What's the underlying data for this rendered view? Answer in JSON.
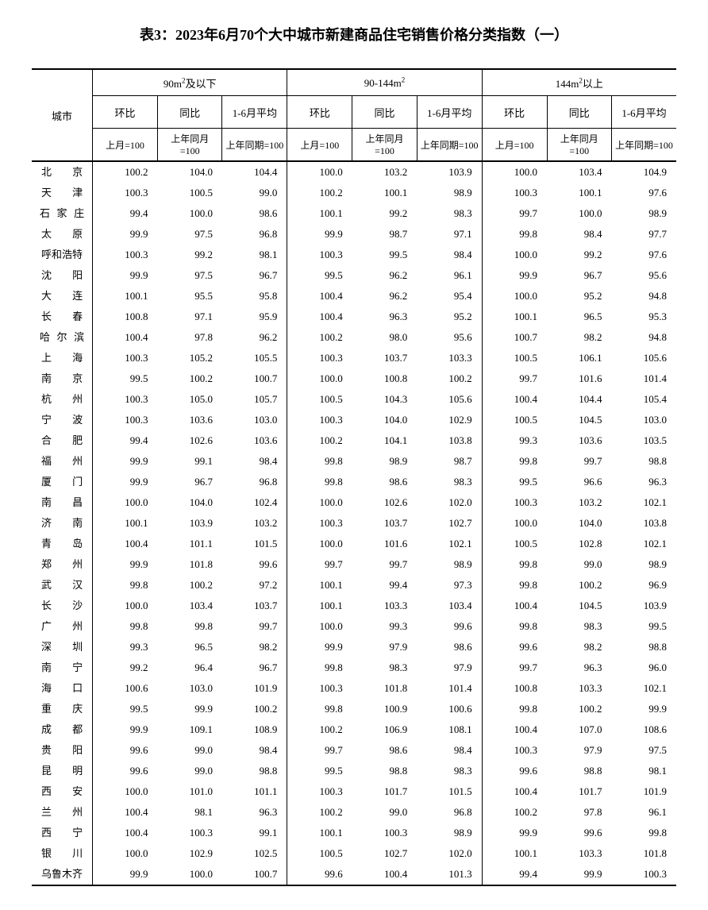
{
  "title": "表3：2023年6月70个大中城市新建商品住宅销售价格分类指数（一）",
  "columns": {
    "city": "城市",
    "groupA": "90m²及以下",
    "groupB": "90-144m²",
    "groupC": "144m²以上",
    "sub1": "环比",
    "sub2": "同比",
    "sub3": "1-6月平均",
    "base1": "上月=100",
    "base2": "上年同月=100",
    "base3": "上年同期=100"
  },
  "rows": [
    {
      "city": "北京",
      "n": 2,
      "v": [
        100.2,
        104.0,
        104.4,
        100.0,
        103.2,
        103.9,
        100.0,
        103.4,
        104.9
      ]
    },
    {
      "city": "天津",
      "n": 2,
      "v": [
        100.3,
        100.5,
        99.0,
        100.2,
        100.1,
        98.9,
        100.3,
        100.1,
        97.6
      ]
    },
    {
      "city": "石家庄",
      "n": 3,
      "v": [
        99.4,
        100.0,
        98.6,
        100.1,
        99.2,
        98.3,
        99.7,
        100.0,
        98.9
      ]
    },
    {
      "city": "太原",
      "n": 2,
      "v": [
        99.9,
        97.5,
        96.8,
        99.9,
        98.7,
        97.1,
        99.8,
        98.4,
        97.7
      ]
    },
    {
      "city": "呼和浩特",
      "n": 4,
      "v": [
        100.3,
        99.2,
        98.1,
        100.3,
        99.5,
        98.4,
        100.0,
        99.2,
        97.6
      ]
    },
    {
      "city": "沈阳",
      "n": 2,
      "v": [
        99.9,
        97.5,
        96.7,
        99.5,
        96.2,
        96.1,
        99.9,
        96.7,
        95.6
      ]
    },
    {
      "city": "大连",
      "n": 2,
      "v": [
        100.1,
        95.5,
        95.8,
        100.4,
        96.2,
        95.4,
        100.0,
        95.2,
        94.8
      ]
    },
    {
      "city": "长春",
      "n": 2,
      "v": [
        100.8,
        97.1,
        95.9,
        100.4,
        96.3,
        95.2,
        100.1,
        96.5,
        95.3
      ]
    },
    {
      "city": "哈尔滨",
      "n": 3,
      "v": [
        100.4,
        97.8,
        96.2,
        100.2,
        98.0,
        95.6,
        100.7,
        98.2,
        94.8
      ]
    },
    {
      "city": "上海",
      "n": 2,
      "v": [
        100.3,
        105.2,
        105.5,
        100.3,
        103.7,
        103.3,
        100.5,
        106.1,
        105.6
      ]
    },
    {
      "city": "南京",
      "n": 2,
      "v": [
        99.5,
        100.2,
        100.7,
        100.0,
        100.8,
        100.2,
        99.7,
        101.6,
        101.4
      ]
    },
    {
      "city": "杭州",
      "n": 2,
      "v": [
        100.3,
        105.0,
        105.7,
        100.5,
        104.3,
        105.6,
        100.4,
        104.4,
        105.4
      ]
    },
    {
      "city": "宁波",
      "n": 2,
      "v": [
        100.3,
        103.6,
        103.0,
        100.3,
        104.0,
        102.9,
        100.5,
        104.5,
        103.0
      ]
    },
    {
      "city": "合肥",
      "n": 2,
      "v": [
        99.4,
        102.6,
        103.6,
        100.2,
        104.1,
        103.8,
        99.3,
        103.6,
        103.5
      ]
    },
    {
      "city": "福州",
      "n": 2,
      "v": [
        99.9,
        99.1,
        98.4,
        99.8,
        98.9,
        98.7,
        99.8,
        99.7,
        98.8
      ]
    },
    {
      "city": "厦门",
      "n": 2,
      "v": [
        99.9,
        96.7,
        96.8,
        99.8,
        98.6,
        98.3,
        99.5,
        96.6,
        96.3
      ]
    },
    {
      "city": "南昌",
      "n": 2,
      "v": [
        100.0,
        104.0,
        102.4,
        100.0,
        102.6,
        102.0,
        100.3,
        103.2,
        102.1
      ]
    },
    {
      "city": "济南",
      "n": 2,
      "v": [
        100.1,
        103.9,
        103.2,
        100.3,
        103.7,
        102.7,
        100.0,
        104.0,
        103.8
      ]
    },
    {
      "city": "青岛",
      "n": 2,
      "v": [
        100.4,
        101.1,
        101.5,
        100.0,
        101.6,
        102.1,
        100.5,
        102.8,
        102.1
      ]
    },
    {
      "city": "郑州",
      "n": 2,
      "v": [
        99.9,
        101.8,
        99.6,
        99.7,
        99.7,
        98.9,
        99.8,
        99.0,
        98.9
      ]
    },
    {
      "city": "武汉",
      "n": 2,
      "v": [
        99.8,
        100.2,
        97.2,
        100.1,
        99.4,
        97.3,
        99.8,
        100.2,
        96.9
      ]
    },
    {
      "city": "长沙",
      "n": 2,
      "v": [
        100.0,
        103.4,
        103.7,
        100.1,
        103.3,
        103.4,
        100.4,
        104.5,
        103.9
      ]
    },
    {
      "city": "广州",
      "n": 2,
      "v": [
        99.8,
        99.8,
        99.7,
        100.0,
        99.3,
        99.6,
        99.8,
        98.3,
        99.5
      ]
    },
    {
      "city": "深圳",
      "n": 2,
      "v": [
        99.3,
        96.5,
        98.2,
        99.9,
        97.9,
        98.6,
        99.6,
        98.2,
        98.8
      ]
    },
    {
      "city": "南宁",
      "n": 2,
      "v": [
        99.2,
        96.4,
        96.7,
        99.8,
        98.3,
        97.9,
        99.7,
        96.3,
        96.0
      ]
    },
    {
      "city": "海口",
      "n": 2,
      "v": [
        100.6,
        103.0,
        101.9,
        100.3,
        101.8,
        101.4,
        100.8,
        103.3,
        102.1
      ]
    },
    {
      "city": "重庆",
      "n": 2,
      "v": [
        99.5,
        99.9,
        100.2,
        99.8,
        100.9,
        100.6,
        99.8,
        100.2,
        99.9
      ]
    },
    {
      "city": "成都",
      "n": 2,
      "v": [
        99.9,
        109.1,
        108.9,
        100.2,
        106.9,
        108.1,
        100.4,
        107.0,
        108.6
      ]
    },
    {
      "city": "贵阳",
      "n": 2,
      "v": [
        99.6,
        99.0,
        98.4,
        99.7,
        98.6,
        98.4,
        100.3,
        97.9,
        97.5
      ]
    },
    {
      "city": "昆明",
      "n": 2,
      "v": [
        99.6,
        99.0,
        98.8,
        99.5,
        98.8,
        98.3,
        99.6,
        98.8,
        98.1
      ]
    },
    {
      "city": "西安",
      "n": 2,
      "v": [
        100.0,
        101.0,
        101.1,
        100.3,
        101.7,
        101.5,
        100.4,
        101.7,
        101.9
      ]
    },
    {
      "city": "兰州",
      "n": 2,
      "v": [
        100.4,
        98.1,
        96.3,
        100.2,
        99.0,
        96.8,
        100.2,
        97.8,
        96.1
      ]
    },
    {
      "city": "西宁",
      "n": 2,
      "v": [
        100.4,
        100.3,
        99.1,
        100.1,
        100.3,
        98.9,
        99.9,
        99.6,
        99.8
      ]
    },
    {
      "city": "银川",
      "n": 2,
      "v": [
        100.0,
        102.9,
        102.5,
        100.5,
        102.7,
        102.0,
        100.1,
        103.3,
        101.8
      ]
    },
    {
      "city": "乌鲁木齐",
      "n": 4,
      "v": [
        99.9,
        100.0,
        100.7,
        99.6,
        100.4,
        101.3,
        99.4,
        99.9,
        100.3
      ]
    }
  ]
}
